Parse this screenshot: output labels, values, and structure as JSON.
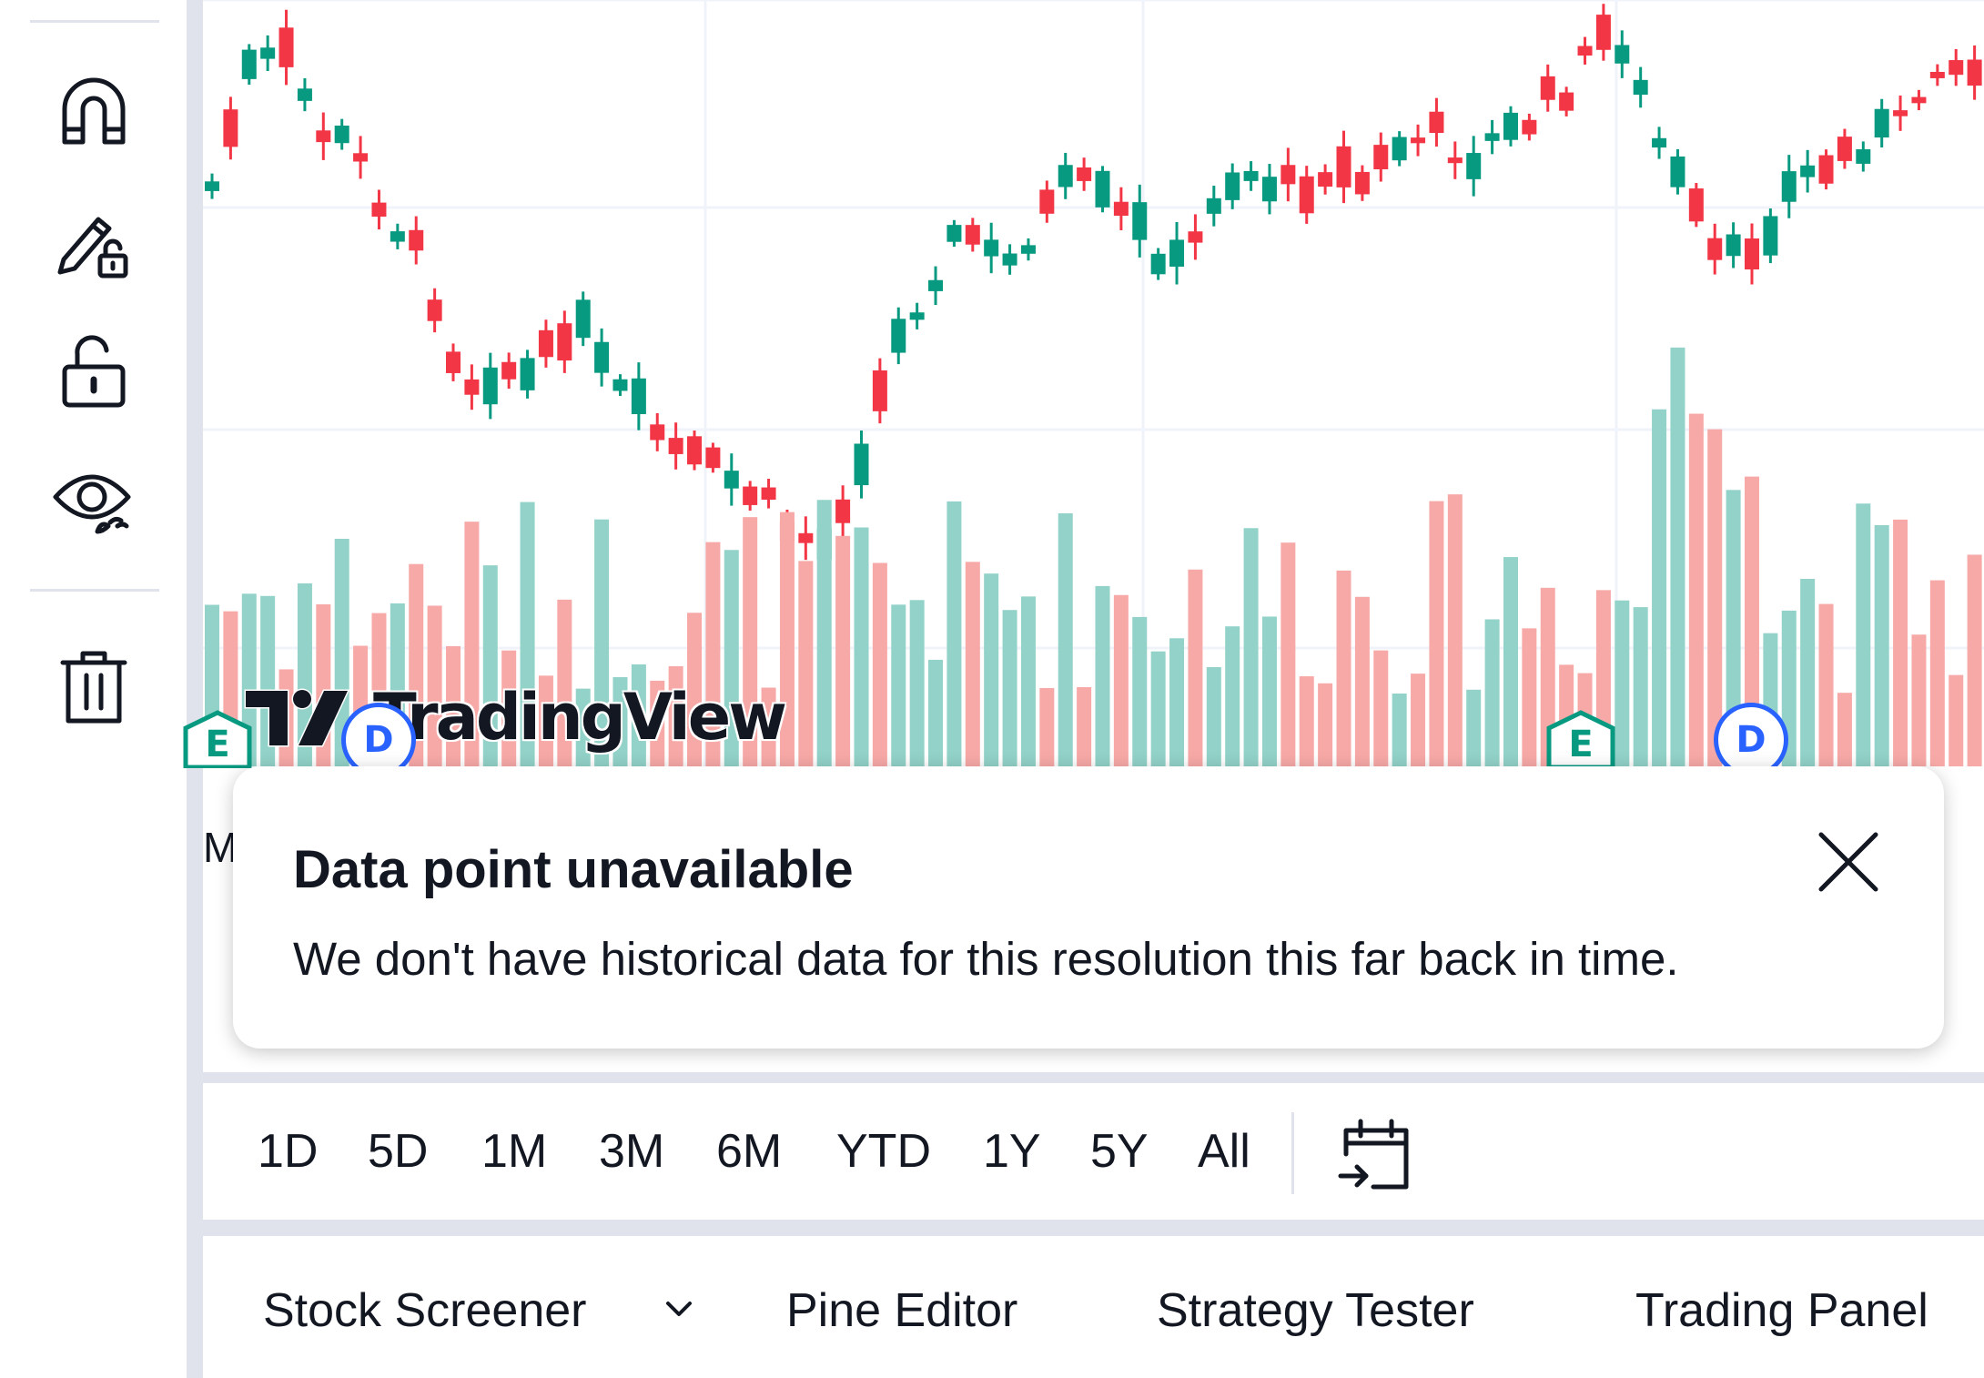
{
  "sidebar": {
    "tools": [
      {
        "icon": "magnet-icon",
        "label": "Magnet mode"
      },
      {
        "icon": "pencil-lock-icon",
        "label": "Stay in drawing mode"
      },
      {
        "icon": "lock-icon",
        "label": "Lock all drawings"
      },
      {
        "icon": "eye-icon",
        "label": "Hide all drawings"
      },
      {
        "icon": "trash-icon",
        "label": "Remove objects"
      }
    ]
  },
  "chart": {
    "watermark": "TradingView",
    "time_axis_label": "Ma",
    "event_markers": [
      {
        "type": "earnings",
        "label": "E"
      },
      {
        "type": "dividend",
        "label": "D"
      },
      {
        "type": "earnings",
        "label": "E"
      },
      {
        "type": "dividend",
        "label": "D"
      }
    ],
    "colors": {
      "up": "#089981",
      "down": "#f23645",
      "up_volume": "#92d2c8",
      "down_volume": "#f7a9a7",
      "grid": "#f0f3fa"
    }
  },
  "toast": {
    "title": "Data point unavailable",
    "message": "We don't have historical data for this resolution this far back in time."
  },
  "range_bar": {
    "ranges": [
      "1D",
      "5D",
      "1M",
      "3M",
      "6M",
      "YTD",
      "1Y",
      "5Y",
      "All"
    ],
    "goto_icon": "calendar-goto-icon"
  },
  "bottom_bar": {
    "tabs": [
      "Stock Screener",
      "Pine Editor",
      "Strategy Tester",
      "Trading Panel"
    ]
  }
}
